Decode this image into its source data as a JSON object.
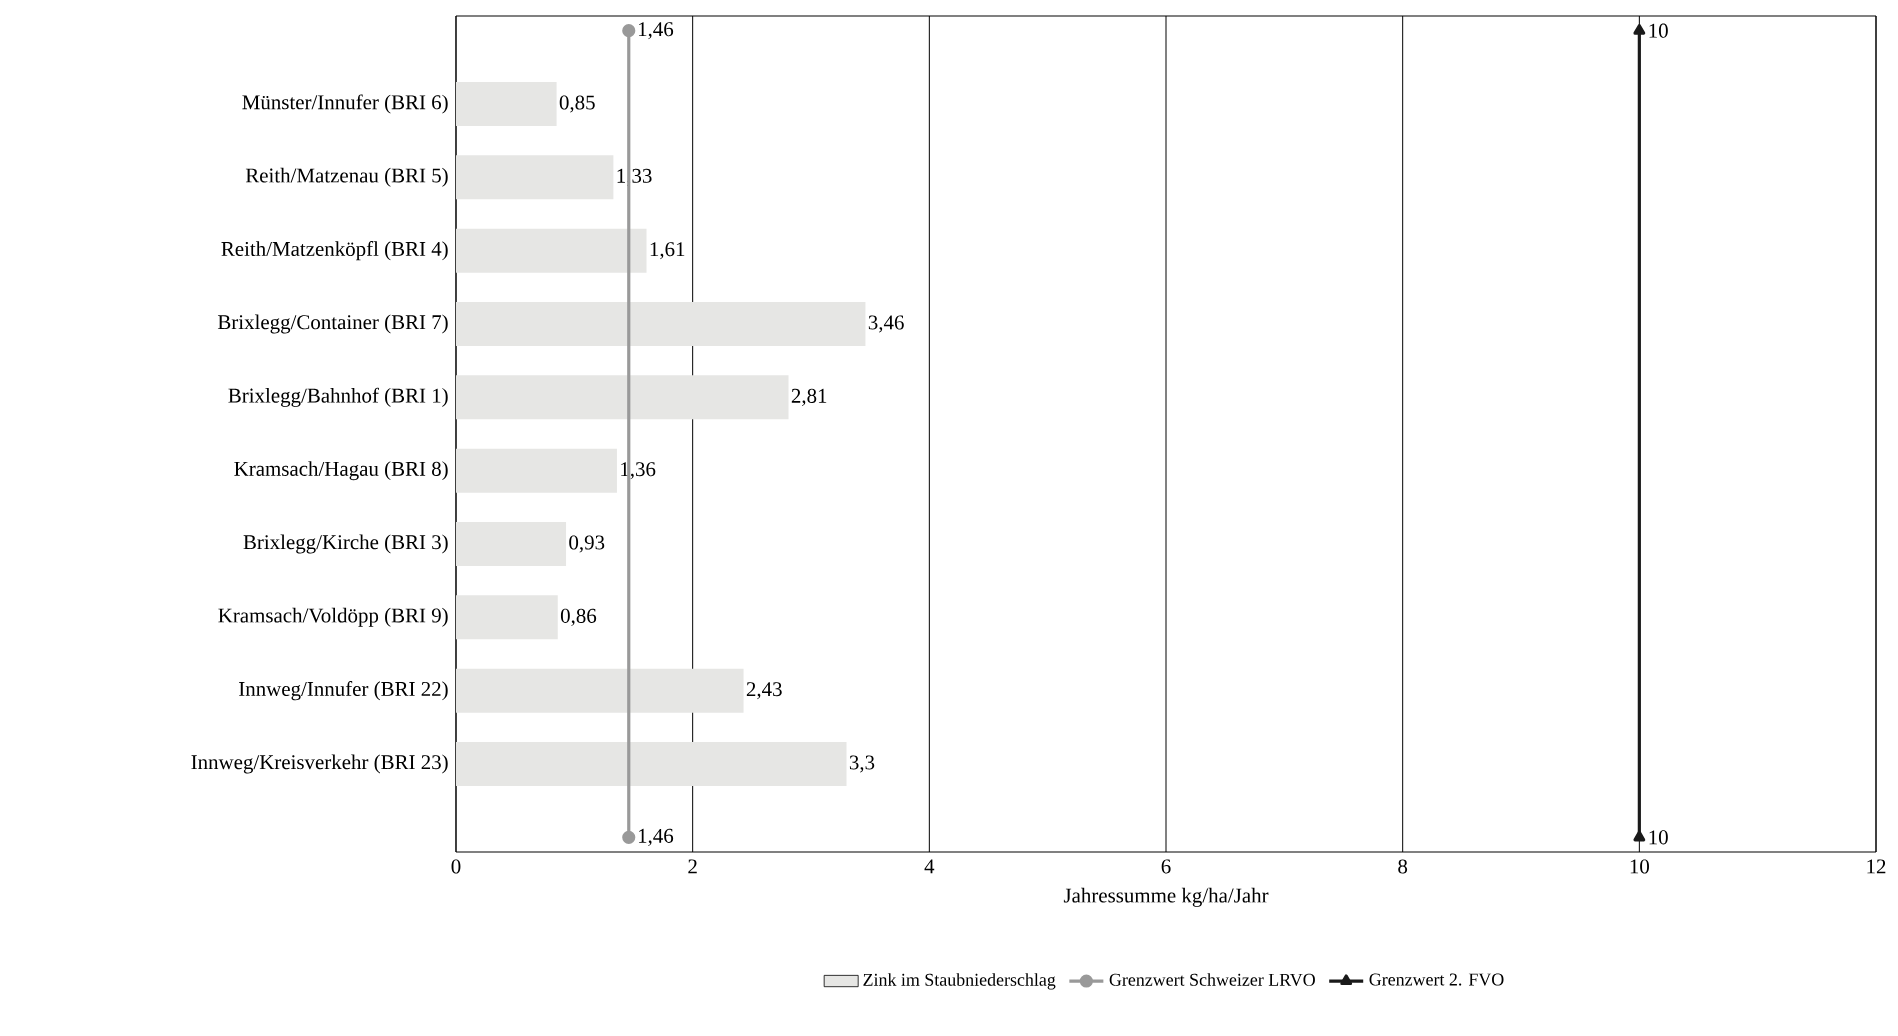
{
  "chart_data": {
    "type": "bar",
    "orientation": "horizontal",
    "xlabel": "Jahressumme kg/ha/Jahr",
    "categories": [
      null,
      "Münster/Innufer (BRI 6)",
      "Reith/Matzenau (BRI 5)",
      "Reith/Matzenköpfl (BRI 4)",
      "Brixlegg/Container (BRI 7)",
      "Brixlegg/Bahnhof (BRI 1)",
      "Kramsach/Hagau (BRI 8)",
      "Brixlegg/Kirche (BRI 3)",
      "Kramsach/Voldöpp (BRI 9)",
      "Innweg/Innufer (BRI 22)",
      "Innweg/Kreisverkehr (BRI 23)",
      null
    ],
    "series": [
      {
        "name": "Zink im Staubniederschlag",
        "color": "#e6e6e4",
        "values": [
          null,
          0.85,
          1.33,
          1.61,
          3.46,
          2.81,
          1.36,
          0.93,
          0.86,
          2.43,
          3.3,
          null
        ],
        "value_labels": [
          null,
          "0,85",
          "1,33",
          "1,61",
          "3,46",
          "2,81",
          "1,36",
          "0,93",
          "0,86",
          "2,43",
          "3,3",
          null
        ]
      },
      {
        "name": "Grenzwert Schweizer LRVO",
        "type": "line",
        "color": "#999999",
        "marker": "circle",
        "values": [
          1.46,
          null,
          null,
          null,
          null,
          null,
          null,
          null,
          null,
          null,
          null,
          1.46
        ],
        "value_labels": [
          "1,46",
          null,
          null,
          null,
          null,
          null,
          null,
          null,
          null,
          null,
          null,
          "1,46"
        ]
      },
      {
        "name": "Grenzwert 2. FVO",
        "type": "line",
        "color": "#1a1a1a",
        "marker": "triangle",
        "values": [
          10,
          null,
          null,
          null,
          null,
          null,
          null,
          null,
          null,
          null,
          null,
          10
        ],
        "value_labels": [
          "10",
          null,
          null,
          null,
          null,
          null,
          null,
          null,
          null,
          null,
          null,
          "10"
        ]
      }
    ],
    "xlim": [
      0,
      12
    ],
    "xticks": [
      0,
      2,
      4,
      6,
      8,
      10,
      12
    ],
    "grid": "x",
    "legend": "bottom"
  }
}
